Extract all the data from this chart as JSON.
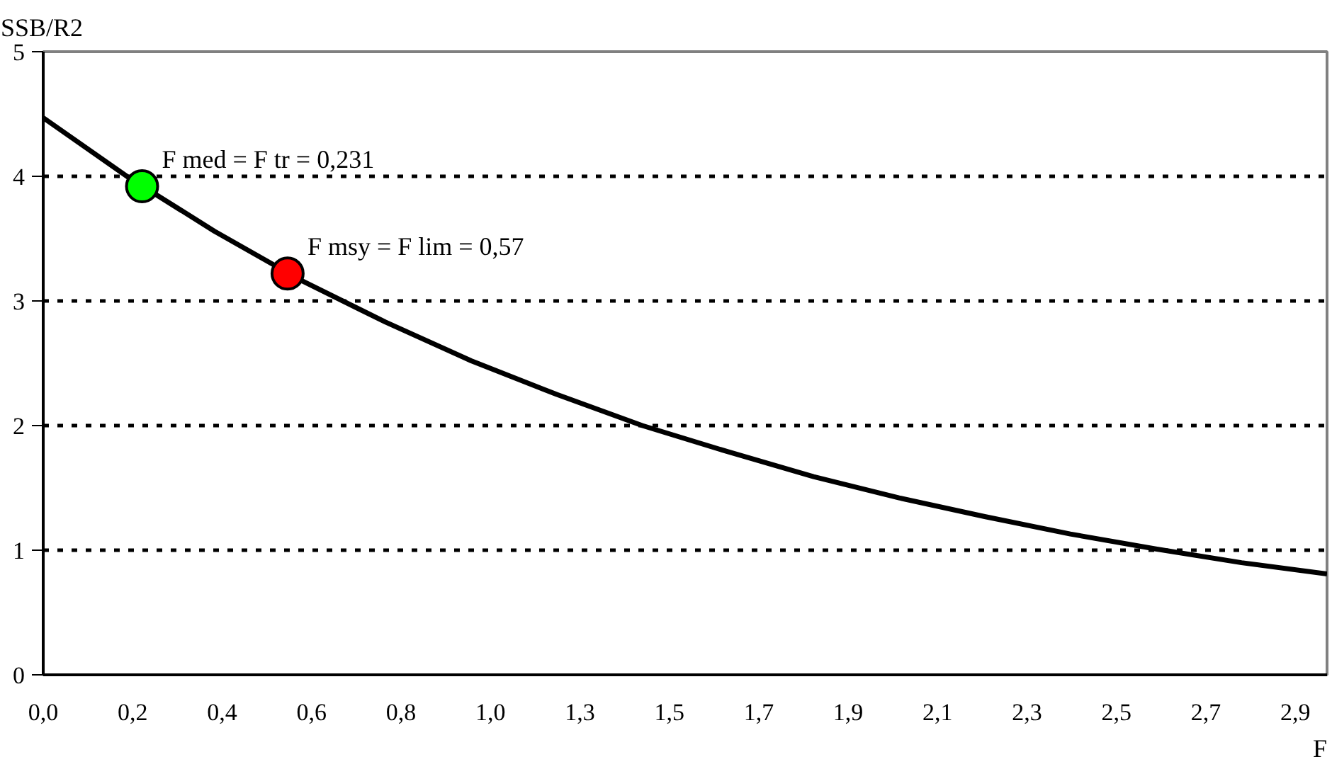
{
  "chart_data": {
    "type": "line",
    "xlabel": "F",
    "ylabel": "SSB/R2",
    "xlim": [
      0,
      3.0
    ],
    "ylim": [
      0,
      5
    ],
    "yticks": [
      0,
      1,
      2,
      3,
      4,
      5
    ],
    "xticks": [
      {
        "value": 0,
        "label": "0,0"
      },
      {
        "value": 0.209,
        "label": "0,2"
      },
      {
        "value": 0.418,
        "label": "0,4"
      },
      {
        "value": 0.627,
        "label": "0,6"
      },
      {
        "value": 0.836,
        "label": "0,8"
      },
      {
        "value": 1.045,
        "label": "1,0"
      },
      {
        "value": 1.254,
        "label": "1,3"
      },
      {
        "value": 1.463,
        "label": "1,5"
      },
      {
        "value": 1.672,
        "label": "1,7"
      },
      {
        "value": 1.881,
        "label": "1,9"
      },
      {
        "value": 2.09,
        "label": "2,1"
      },
      {
        "value": 2.299,
        "label": "2,3"
      },
      {
        "value": 2.508,
        "label": "2,5"
      },
      {
        "value": 2.717,
        "label": "2,7"
      },
      {
        "value": 2.926,
        "label": "2,9"
      }
    ],
    "grid": "y",
    "line_style": "solid",
    "series": [
      {
        "color": "#000000",
        "x": [
          0,
          0.2,
          0.4,
          0.6,
          0.8,
          1.0,
          1.2,
          1.4,
          1.6,
          1.8,
          2.0,
          2.2,
          2.4,
          2.6,
          2.8,
          3.0
        ],
        "values": [
          4.47,
          3.99,
          3.56,
          3.17,
          2.83,
          2.52,
          2.25,
          2.0,
          1.79,
          1.59,
          1.42,
          1.27,
          1.13,
          1.01,
          0.9,
          0.81
        ]
      },
      {
        "type": "scatter",
        "marker": "circle",
        "x": [
          0.231,
          0.571
        ],
        "values": [
          3.92,
          3.22
        ],
        "colors": [
          "#00ff00",
          "#ff0000"
        ]
      }
    ],
    "annotations": [
      {
        "text": "F med = F tr = 0,231",
        "x": 0.231,
        "y": 3.92
      },
      {
        "text": "F msy = F lim = 0,57",
        "x": 0.571,
        "y": 3.22
      }
    ]
  }
}
